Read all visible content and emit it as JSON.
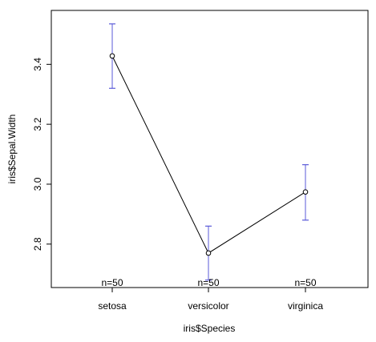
{
  "chart_data": {
    "type": "line",
    "categories": [
      "setosa",
      "versicolor",
      "virginica"
    ],
    "series": [
      {
        "values": [
          3.428,
          2.77,
          2.974
        ],
        "ci_lower": [
          3.32,
          2.68,
          2.88
        ],
        "ci_upper": [
          3.535,
          2.86,
          3.065
        ]
      }
    ],
    "n_labels": [
      "n=50",
      "n=50",
      "n=50"
    ],
    "xlabel": "iris$Species",
    "ylabel": "iris$Sepal.Width",
    "yticks": [
      2.8,
      3.0,
      3.2,
      3.4
    ],
    "ytick_labels": [
      "2.8",
      "3.0",
      "3.2",
      "3.4"
    ],
    "ylim": [
      2.655,
      3.58
    ],
    "grid": false,
    "colors": {
      "line": "#000000",
      "errorbar": "#5a5ad8"
    }
  }
}
